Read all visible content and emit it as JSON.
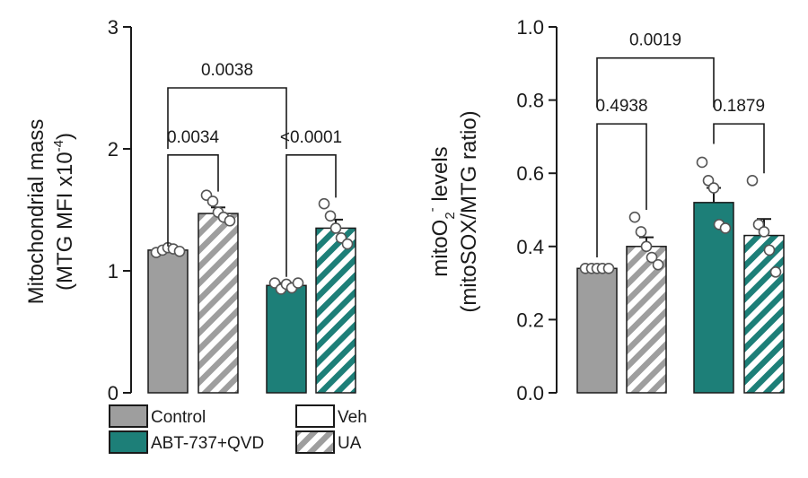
{
  "colors": {
    "control": "#9e9e9e",
    "abt": "#1d7f78",
    "text": "#1a1a1a"
  },
  "legend": {
    "control_label": "Control",
    "abt_label": "ABT-737+QVD",
    "veh_label": "Veh",
    "ua_label": "UA"
  },
  "chart_data": [
    {
      "type": "bar",
      "title": "",
      "ylabel_line1": "Mitochondrial mass",
      "ylabel_line2_main": "(MTG MFI x10",
      "ylabel_line2_sup": "-4",
      "ylabel_line2_end": ")",
      "ylim": [
        0,
        3
      ],
      "yticks": [
        0,
        1,
        2,
        3
      ],
      "ytick_labels": [
        "0",
        "1",
        "2",
        "3"
      ],
      "bars": [
        {
          "group": "Control",
          "treatment": "Veh",
          "mean": 1.17,
          "sem": 0.02,
          "points": [
            1.15,
            1.17,
            1.19,
            1.18,
            1.16
          ]
        },
        {
          "group": "Control",
          "treatment": "UA",
          "mean": 1.47,
          "sem": 0.05,
          "points": [
            1.62,
            1.57,
            1.48,
            1.44,
            1.41
          ]
        },
        {
          "group": "ABT-737+QVD",
          "treatment": "Veh",
          "mean": 0.88,
          "sem": 0.02,
          "points": [
            0.9,
            0.85,
            0.89,
            0.86,
            0.9
          ]
        },
        {
          "group": "ABT-737+QVD",
          "treatment": "UA",
          "mean": 1.35,
          "sem": 0.07,
          "points": [
            1.55,
            1.45,
            1.35,
            1.27,
            1.22
          ]
        }
      ],
      "comparisons": [
        {
          "label": "0.0034",
          "from": 0,
          "to": 1,
          "y": 1.95,
          "drop_from": 1.2,
          "drop_to": 1.65
        },
        {
          "label": "<0.0001",
          "from": 2,
          "to": 3,
          "y": 1.95,
          "drop_from": 0.95,
          "drop_to": 1.6
        },
        {
          "label": "0.0038",
          "from": 0,
          "to": 2,
          "y": 2.5,
          "drop_from": 2.0,
          "drop_to": 2.0
        }
      ]
    },
    {
      "type": "bar",
      "title": "",
      "ylabel_line1_main": "mitoO",
      "ylabel_line1_sub": "2",
      "ylabel_line1_sup": "-",
      "ylabel_line1_end": " levels",
      "ylabel_line2": "(mitoSOX/MTG ratio)",
      "ylim": [
        0,
        1
      ],
      "yticks": [
        0,
        0.2,
        0.4,
        0.6,
        0.8,
        1.0
      ],
      "ytick_labels": [
        "0.0",
        "0.2",
        "0.4",
        "0.6",
        "0.8",
        "1.0"
      ],
      "bars": [
        {
          "group": "Control",
          "treatment": "Veh",
          "mean": 0.34,
          "sem": 0.005,
          "points": [
            0.34,
            0.34,
            0.34,
            0.34,
            0.34
          ]
        },
        {
          "group": "Control",
          "treatment": "UA",
          "mean": 0.4,
          "sem": 0.025,
          "points": [
            0.48,
            0.44,
            0.4,
            0.37,
            0.35
          ]
        },
        {
          "group": "ABT-737+QVD",
          "treatment": "Veh",
          "mean": 0.52,
          "sem": 0.04,
          "points": [
            0.63,
            0.58,
            0.56,
            0.46,
            0.45
          ]
        },
        {
          "group": "ABT-737+QVD",
          "treatment": "UA",
          "mean": 0.43,
          "sem": 0.045,
          "points": [
            0.58,
            0.46,
            0.44,
            0.39,
            0.33
          ]
        }
      ],
      "comparisons": [
        {
          "label": "0.4938",
          "from": 0,
          "to": 1,
          "y": 0.735,
          "drop_from": 0.37,
          "drop_to": 0.5
        },
        {
          "label": "0.1879",
          "from": 2,
          "to": 3,
          "y": 0.735,
          "drop_from": 0.68,
          "drop_to": 0.6
        },
        {
          "label": "0.0019",
          "from": 0,
          "to": 2,
          "y": 0.915,
          "drop_from": 0.78,
          "drop_to": 0.78
        }
      ]
    }
  ]
}
